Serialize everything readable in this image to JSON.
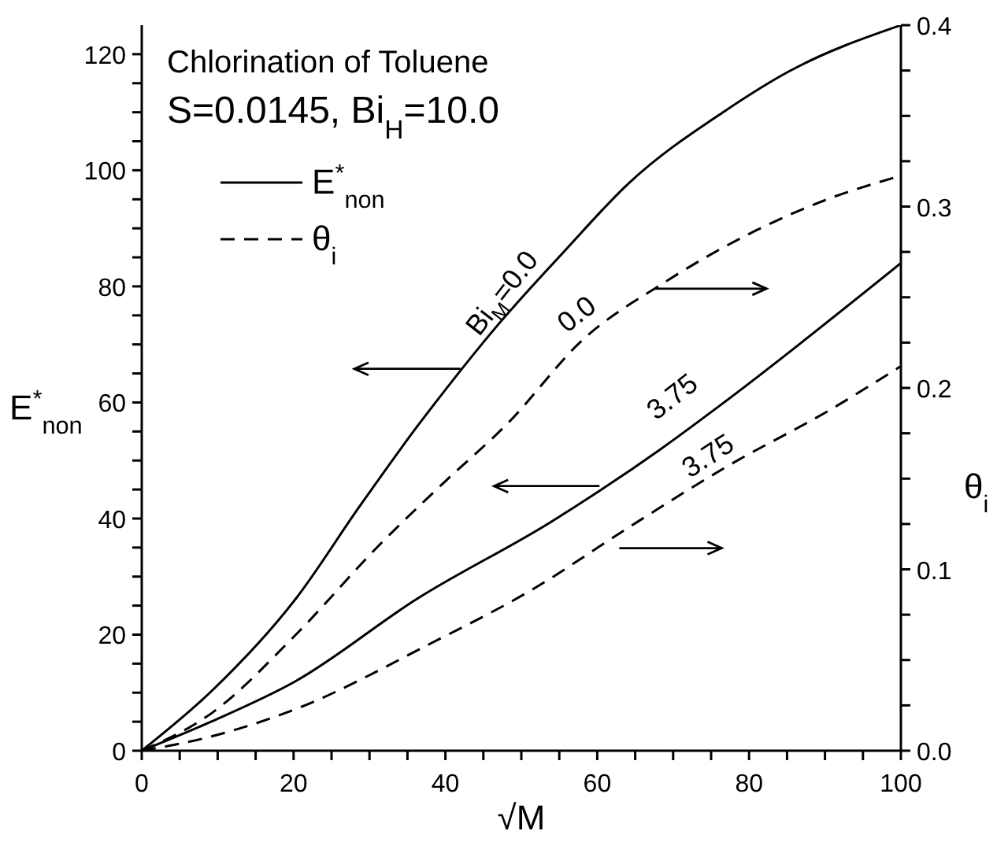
{
  "chart_data": {
    "type": "line",
    "xlabel": "√M",
    "ylabel": "E$^{*}$$_{non}$",
    "y2label": "θ$_{i}$",
    "xlim": [
      0,
      100
    ],
    "xticks": [
      0,
      {
        "value": 5,
        "label": null
      },
      {
        "value": 10,
        "label": null
      },
      {
        "value": 15,
        "label": null
      },
      20,
      {
        "value": 25,
        "label": null
      },
      {
        "value": 30,
        "label": null
      },
      {
        "value": 35,
        "label": null
      },
      40,
      {
        "value": 45,
        "label": null
      },
      {
        "value": 50,
        "label": null
      },
      {
        "value": 55,
        "label": null
      },
      60,
      {
        "value": 65,
        "label": null
      },
      {
        "value": 70,
        "label": null
      },
      {
        "value": 75,
        "label": null
      },
      80,
      {
        "value": 85,
        "label": null
      },
      {
        "value": 90,
        "label": null
      },
      {
        "value": 95,
        "label": null
      },
      100
    ],
    "ylim": [
      0,
      125
    ],
    "yticks": [
      0,
      {
        "value": 5,
        "label": null
      },
      {
        "value": 10,
        "label": null
      },
      {
        "value": 15,
        "label": null
      },
      20,
      {
        "value": 25,
        "label": null
      },
      {
        "value": 30,
        "label": null
      },
      {
        "value": 35,
        "label": null
      },
      40,
      {
        "value": 45,
        "label": null
      },
      {
        "value": 50,
        "label": null
      },
      {
        "value": 55,
        "label": null
      },
      60,
      {
        "value": 65,
        "label": null
      },
      {
        "value": 70,
        "label": null
      },
      {
        "value": 75,
        "label": null
      },
      80,
      {
        "value": 85,
        "label": null
      },
      {
        "value": 90,
        "label": null
      },
      {
        "value": 95,
        "label": null
      },
      100,
      {
        "value": 105,
        "label": null
      },
      {
        "value": 110,
        "label": null
      },
      {
        "value": 115,
        "label": null
      },
      120
    ],
    "y2lim": [
      0,
      0.4
    ],
    "y2ticks": [
      {
        "value": 0,
        "label": "0.0"
      },
      {
        "value": 0.025,
        "label": null
      },
      {
        "value": 0.05,
        "label": null
      },
      {
        "value": 0.075,
        "label": null
      },
      0.1,
      {
        "value": 0.125,
        "label": null
      },
      {
        "value": 0.15,
        "label": null
      },
      {
        "value": 0.175,
        "label": null
      },
      0.2,
      {
        "value": 0.225,
        "label": null
      },
      {
        "value": 0.25,
        "label": null
      },
      {
        "value": 0.275,
        "label": null
      },
      0.3,
      {
        "value": 0.325,
        "label": null
      },
      {
        "value": 0.35,
        "label": null
      },
      {
        "value": 0.375,
        "label": null
      },
      0.4
    ],
    "legend": "top left",
    "marker": "none",
    "series": [
      {
        "name": "E$^{*}$$_{non}$",
        "color": "#000000",
        "line_style": "solid",
        "x": [
          0,
          9.3,
          20.3,
          28.7,
          36.3,
          38.7,
          47,
          55.7,
          64.1,
          76.8,
          85.2,
          100
        ],
        "values": [
          0,
          10.4,
          26.2,
          42.1,
          55.9,
          60,
          73.5,
          86.1,
          97.7,
          110.2,
          117,
          125
        ]
      },
      {
        "name": "θ$_{i}$",
        "color": "#000000",
        "line_style": "dashed",
        "axis": "y2",
        "x": [
          0,
          9.3,
          20.3,
          31.2,
          40.1,
          48.1,
          58.2,
          68.4,
          81,
          90.3,
          100
        ],
        "values": [
          0,
          0.021,
          0.064,
          0.113,
          0.149,
          0.18,
          0.227,
          0.257,
          0.287,
          0.304,
          0.317
        ]
      },
      {
        "color": "#000000",
        "line_style": "solid",
        "x": [
          0,
          9.3,
          20.3,
          36.3,
          54,
          68.4,
          76.8,
          100
        ],
        "values": [
          0,
          5.1,
          12,
          26.2,
          39.5,
          52,
          60.1,
          84
        ]
      },
      {
        "color": "#000000",
        "line_style": "dashed",
        "axis": "y2",
        "x": [
          0,
          9.3,
          20.3,
          38,
          51.5,
          64.1,
          76.8,
          91.1,
          100
        ],
        "values": [
          0,
          0.008,
          0.023,
          0.059,
          0.089,
          0.123,
          0.156,
          0.189,
          0.212
        ]
      }
    ],
    "annotations": [
      "Chlorination of Toluene",
      "S=0.0145, Bi$_{H}$=10.0",
      "Bi$_{M}$=0.0",
      "0.0",
      "3.75",
      "3.75"
    ]
  }
}
